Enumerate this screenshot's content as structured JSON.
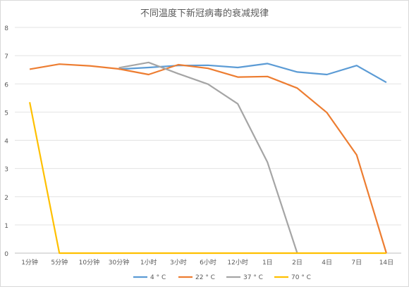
{
  "chart_data": {
    "type": "line",
    "title": "不同温度下新冠病毒的衰减规律",
    "categories": [
      "1分钟",
      "5分钟",
      "10分钟",
      "30分钟",
      "1小时",
      "3小时",
      "6小时",
      "12小时",
      "1日",
      "2日",
      "4日",
      "7日",
      "14日"
    ],
    "ylim": [
      0,
      8
    ],
    "yticks": [
      "0",
      "1",
      "2",
      "3",
      "4",
      "5",
      "6",
      "7",
      "8"
    ],
    "grid": true,
    "legend": "bottom",
    "series": [
      {
        "name": "4 ° C",
        "color": "#5b9bd5",
        "values": [
          null,
          null,
          null,
          6.52,
          6.58,
          6.65,
          6.66,
          6.58,
          6.72,
          6.42,
          6.33,
          6.65,
          6.05
        ]
      },
      {
        "name": "22 ° C",
        "color": "#ed7d31",
        "values": [
          6.52,
          6.7,
          6.64,
          6.53,
          6.33,
          6.68,
          6.55,
          6.24,
          6.26,
          5.85,
          4.98,
          3.48,
          0
        ]
      },
      {
        "name": "37 ° C",
        "color": "#a5a5a5",
        "values": [
          null,
          null,
          null,
          6.57,
          6.76,
          6.36,
          5.99,
          5.29,
          3.22,
          0,
          null,
          null,
          null
        ]
      },
      {
        "name": "70 ° C",
        "color": "#ffc000",
        "values": [
          5.35,
          0,
          0,
          0,
          0,
          0,
          0,
          0,
          0,
          0,
          0,
          0,
          0
        ]
      }
    ]
  }
}
